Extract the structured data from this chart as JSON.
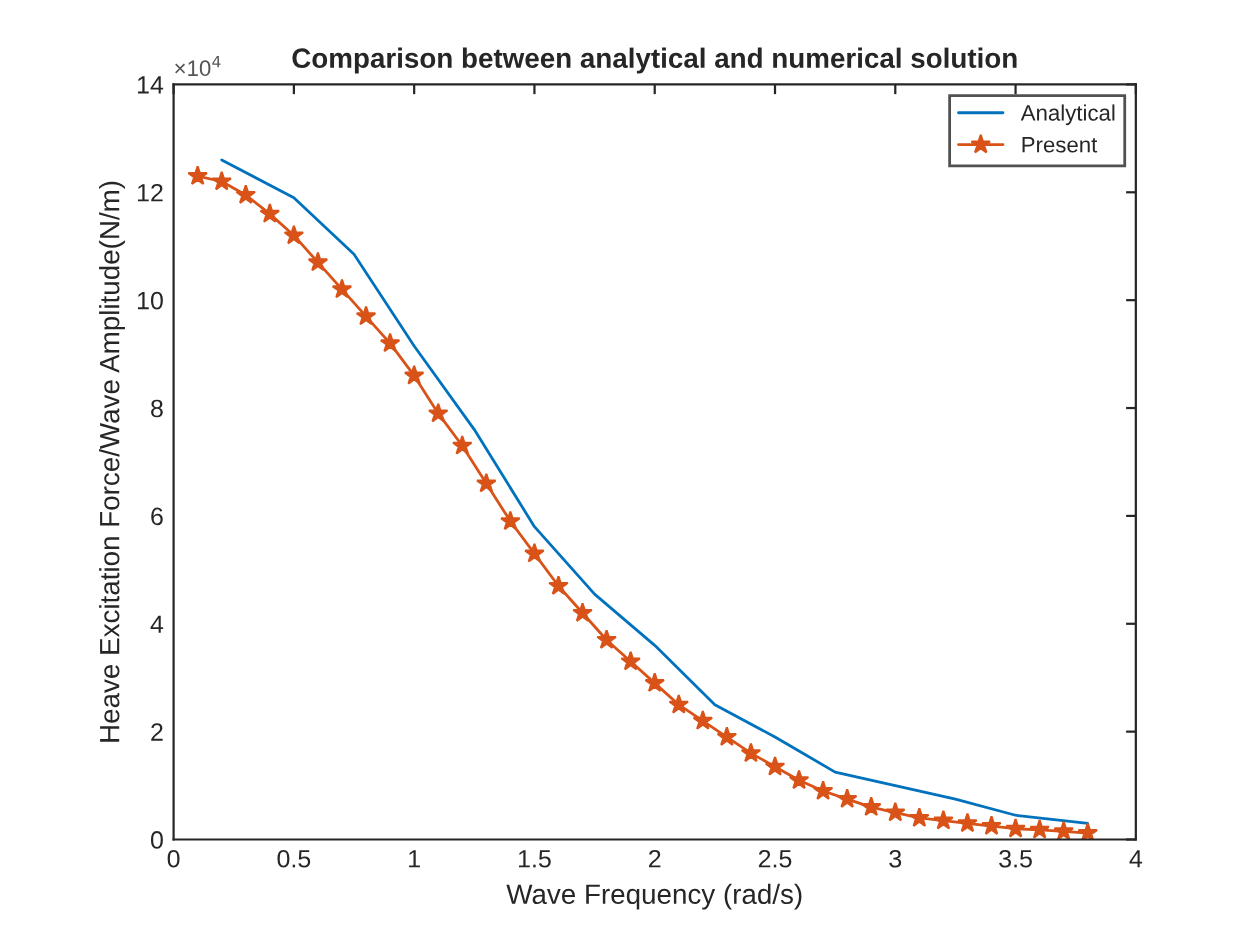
{
  "chart_data": {
    "type": "line",
    "title": "Comparison between analytical and numerical solution",
    "xlabel": "Wave Frequency (rad/s)",
    "ylabel": "Heave Excitation Force/Wave Amplitude(N/m)",
    "annotations": [
      "×10$^{4}$"
    ],
    "xlim": [
      0,
      4
    ],
    "xticks": [
      0,
      0.5,
      1,
      1.5,
      2,
      2.5,
      3,
      3.5,
      4
    ],
    "ylim": [
      0,
      14
    ],
    "yticks": [
      0,
      2,
      4,
      6,
      8,
      10,
      12,
      14
    ],
    "grid": false,
    "legend": "top right",
    "series": [
      {
        "name": "Analytical",
        "color": "#0072bd",
        "marker": "none",
        "x": [
          0.2,
          0.5,
          0.75,
          1.0,
          1.25,
          1.5,
          1.75,
          2.0,
          2.25,
          2.5,
          2.75,
          3.0,
          3.25,
          3.5,
          3.8
        ],
        "values": [
          12.6,
          11.9,
          10.85,
          9.15,
          7.6,
          5.8,
          4.55,
          3.6,
          2.5,
          1.9,
          1.25,
          1.0,
          0.75,
          0.45,
          0.3
        ]
      },
      {
        "name": "Present",
        "color": "#d95319",
        "marker": "star",
        "x": [
          0.1,
          0.2,
          0.3,
          0.4,
          0.5,
          0.6,
          0.7,
          0.8,
          0.9,
          1.0,
          1.1,
          1.2,
          1.3,
          1.4,
          1.5,
          1.6,
          1.7,
          1.8,
          1.9,
          2.0,
          2.1,
          2.2,
          2.3,
          2.4,
          2.5,
          2.6,
          2.7,
          2.8,
          2.9,
          3.0,
          3.1,
          3.2,
          3.3,
          3.4,
          3.5,
          3.6,
          3.7,
          3.8
        ],
        "values": [
          12.3,
          12.2,
          11.95,
          11.6,
          11.2,
          10.7,
          10.2,
          9.7,
          9.2,
          8.6,
          7.9,
          7.3,
          6.6,
          5.9,
          5.3,
          4.7,
          4.2,
          3.7,
          3.3,
          2.9,
          2.5,
          2.2,
          1.9,
          1.6,
          1.35,
          1.1,
          0.9,
          0.75,
          0.6,
          0.5,
          0.4,
          0.35,
          0.3,
          0.25,
          0.2,
          0.18,
          0.15,
          0.12
        ]
      }
    ]
  }
}
